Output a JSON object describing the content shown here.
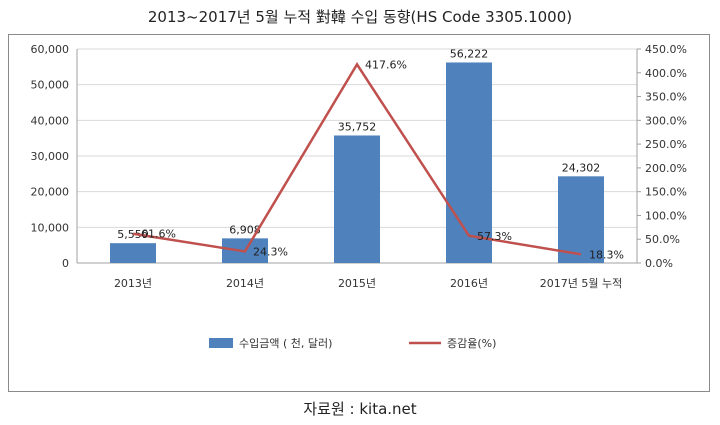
{
  "title": "2013~2017년 5월 누적 對韓 수입 동향(HS Code 3305.1000)",
  "source": "자료원 : kita.net",
  "colors": {
    "bar": "#4f81bd",
    "line": "#c0504d",
    "grid": "#d9d9d9",
    "axis": "#a0a0a0"
  },
  "chart_data": {
    "type": "bar+line",
    "categories": [
      "2013년",
      "2014년",
      "2015년",
      "2016년",
      "2017년 5월 누적"
    ],
    "series": [
      {
        "name": "수입금액 ( 천, 달러)",
        "type": "bar",
        "axis": "left",
        "values": [
          5559,
          6908,
          35752,
          56222,
          24302
        ],
        "labels": [
          "5,559",
          "6,908",
          "35,752",
          "56,222",
          "24,302"
        ]
      },
      {
        "name": "증감율(%)",
        "type": "line",
        "axis": "right",
        "values": [
          61.6,
          24.3,
          417.6,
          57.3,
          18.3
        ],
        "labels": [
          "61.6%",
          "24.3%",
          "417.6%",
          "57.3%",
          "18.3%"
        ]
      }
    ],
    "left_axis": {
      "ylim": [
        0,
        60000
      ],
      "ticks": [
        "0",
        "10,000",
        "20,000",
        "30,000",
        "40,000",
        "50,000",
        "60,000"
      ]
    },
    "right_axis": {
      "ylim": [
        0,
        450
      ],
      "ticks": [
        "0.0%",
        "50.0%",
        "100.0%",
        "150.0%",
        "200.0%",
        "250.0%",
        "300.0%",
        "350.0%",
        "400.0%",
        "450.0%"
      ]
    },
    "grid": true,
    "legend_position": "bottom"
  }
}
